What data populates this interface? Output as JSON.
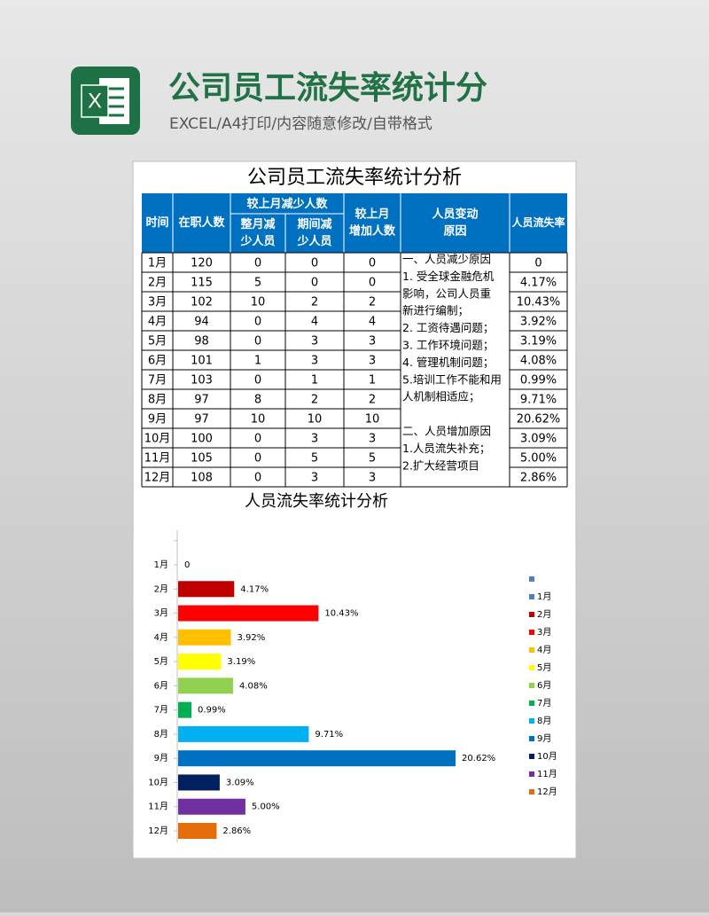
{
  "header": {
    "icon_text": "X",
    "title": "公司员工流失率统计分",
    "subtitle": "EXCEL/A4打印/内容随意修改/自带格式"
  },
  "sheet_title": "公司员工流失率统计分析",
  "table": {
    "group_header": "较上月减少人数",
    "columns": [
      [
        "时间"
      ],
      [
        "在职人数"
      ],
      [
        "整月减",
        "少人员"
      ],
      [
        "期间减",
        "少人员"
      ],
      [
        "较上月",
        "增加人数"
      ],
      [
        "人员变动",
        "原因"
      ],
      [
        "人员流失率"
      ]
    ],
    "rows": [
      [
        "1月",
        120,
        0,
        0,
        0,
        "0"
      ],
      [
        "2月",
        115,
        5,
        0,
        0,
        "4.17%"
      ],
      [
        "3月",
        102,
        10,
        2,
        2,
        "10.43%"
      ],
      [
        "4月",
        94,
        0,
        4,
        4,
        "3.92%"
      ],
      [
        "5月",
        98,
        0,
        3,
        3,
        "3.19%"
      ],
      [
        "6月",
        101,
        1,
        3,
        3,
        "4.08%"
      ],
      [
        "7月",
        103,
        0,
        1,
        1,
        "0.99%"
      ],
      [
        "8月",
        97,
        8,
        2,
        2,
        "9.71%"
      ],
      [
        "9月",
        97,
        10,
        10,
        10,
        "20.62%"
      ],
      [
        "10月",
        100,
        0,
        3,
        3,
        "3.09%"
      ],
      [
        "11月",
        105,
        0,
        5,
        5,
        "5.00%"
      ],
      [
        "12月",
        108,
        0,
        3,
        3,
        "2.86%"
      ]
    ],
    "reasons": {
      "decrease": [
        "一、人员减少原因",
        "1. 受全球金融危机",
        "影响，公司人员重",
        "新进行编制；",
        "2. 工资待遇问题；",
        "3. 工作环境问题；",
        "4. 管理机制问题；",
        "5.培训工作不能和用",
        "人机制相适应；"
      ],
      "increase": [
        "二、人员增加原因",
        "1.人员流失补充；",
        "2.扩大经营项目"
      ]
    }
  },
  "chart_data": {
    "type": "hbar",
    "title": "人员流失率统计分析",
    "categories": [
      "1月",
      "2月",
      "3月",
      "4月",
      "5月",
      "6月",
      "7月",
      "8月",
      "9月",
      "10月",
      "11月",
      "12月"
    ],
    "values": [
      0,
      4.17,
      10.43,
      3.92,
      3.19,
      4.08,
      0.99,
      9.71,
      20.62,
      3.09,
      5.0,
      2.86
    ],
    "value_labels": [
      "0",
      "4.17%",
      "10.43%",
      "3.92%",
      "3.19%",
      "4.08%",
      "0.99%",
      "9.71%",
      "20.62%",
      "3.09%",
      "5.00%",
      "2.86%"
    ],
    "colors": [
      "#4f81bd",
      "#c00000",
      "#ff0000",
      "#ffc000",
      "#ffff00",
      "#92d050",
      "#00b050",
      "#00b0f0",
      "#0070c0",
      "#002060",
      "#7030a0",
      "#e46c0a"
    ],
    "xlim": [
      0,
      22
    ],
    "legend": "right"
  }
}
